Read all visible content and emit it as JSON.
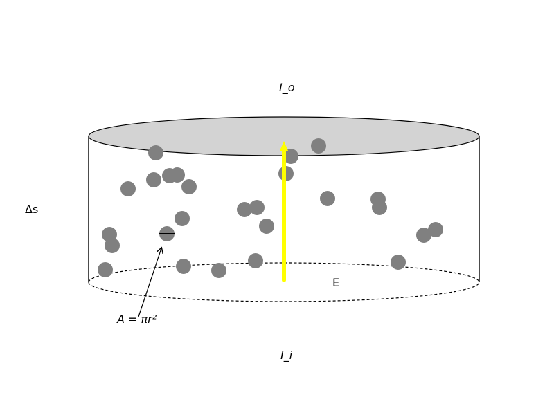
{
  "labels": {
    "outgoing_intensity": "I_o",
    "incoming_intensity": "I_i",
    "path_length": "Δs",
    "field": "E",
    "area_formula": "A = πr²"
  },
  "colors": {
    "particle": "#808080",
    "top_face": "#d3d3d3",
    "beam": "#ffff00",
    "outline": "#000000"
  },
  "particle_count": 26
}
